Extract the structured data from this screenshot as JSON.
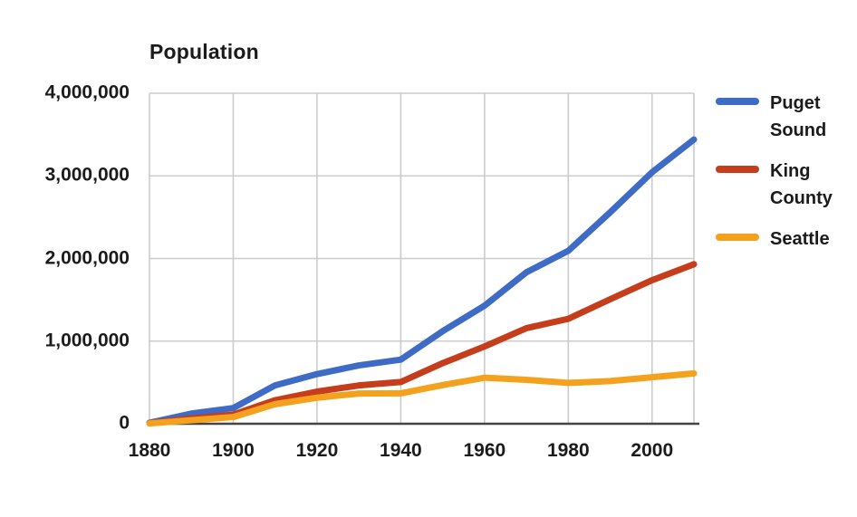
{
  "title": "Population",
  "colors": {
    "background": "#ffffff",
    "grid": "#cccccc",
    "axis_line": "#444444",
    "text": "#1b1b1b",
    "puget_sound": "#3e6bc5",
    "king_county": "#c53d1b",
    "seattle": "#f4a11d"
  },
  "legend": {
    "position": "right"
  },
  "chart_data": {
    "type": "line",
    "title": "Population",
    "xlabel": "",
    "ylabel": "",
    "grid": true,
    "legend_position": "right",
    "xlim": [
      1880,
      2010
    ],
    "ylim": [
      0,
      4000000
    ],
    "x": [
      1880,
      1890,
      1900,
      1910,
      1920,
      1930,
      1940,
      1950,
      1960,
      1970,
      1980,
      1990,
      2000,
      2010
    ],
    "series": [
      {
        "name": "Puget Sound",
        "color": "#3e6bc5",
        "values": [
          12000,
          123000,
          190000,
          465000,
          601000,
          706000,
          776000,
          1120000,
          1429000,
          1833000,
          2093000,
          2559000,
          3044000,
          3440000
        ]
      },
      {
        "name": "King County",
        "color": "#c53d1b",
        "values": [
          7000,
          64000,
          110000,
          285000,
          389000,
          464000,
          505000,
          733000,
          935000,
          1157000,
          1270000,
          1507000,
          1737000,
          1931000
        ]
      },
      {
        "name": "Seattle",
        "color": "#f4a11d",
        "values": [
          4000,
          43000,
          81000,
          237000,
          315000,
          366000,
          368000,
          468000,
          557000,
          531000,
          494000,
          516000,
          563000,
          609000
        ]
      }
    ],
    "x_ticks": [
      {
        "value": 1880,
        "label": "1880"
      },
      {
        "value": 1900,
        "label": "1900"
      },
      {
        "value": 1920,
        "label": "1920"
      },
      {
        "value": 1940,
        "label": "1940"
      },
      {
        "value": 1960,
        "label": "1960"
      },
      {
        "value": 1980,
        "label": "1980"
      },
      {
        "value": 2000,
        "label": "2000"
      }
    ],
    "y_ticks": [
      {
        "value": 0,
        "label": "0"
      },
      {
        "value": 1000000,
        "label": "1,000,000"
      },
      {
        "value": 2000000,
        "label": "2,000,000"
      },
      {
        "value": 3000000,
        "label": "3,000,000"
      },
      {
        "value": 4000000,
        "label": "4,000,000"
      }
    ]
  }
}
